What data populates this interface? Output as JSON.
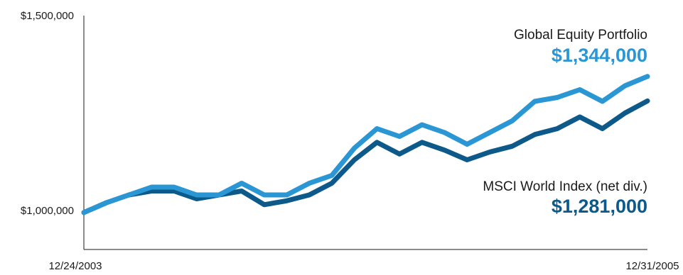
{
  "chart_data": {
    "type": "line",
    "y_tick_labels": [
      "$1,500,000",
      "$1,000,000"
    ],
    "y_ticks": [
      1500000,
      1000000
    ],
    "ylim": [
      900000,
      1500000
    ],
    "x_tick_labels": [
      "12/24/2003",
      "12/31/2005"
    ],
    "grid": false,
    "legend_placement": "right (direct labels)",
    "series": [
      {
        "name": "Global Equity Portfolio",
        "end_label": "$1,344,000",
        "color": "#2a97d4",
        "values": [
          995000,
          1020000,
          1040000,
          1060000,
          1060000,
          1040000,
          1040000,
          1070000,
          1040000,
          1040000,
          1070000,
          1090000,
          1160000,
          1210000,
          1190000,
          1220000,
          1200000,
          1170000,
          1200000,
          1230000,
          1280000,
          1290000,
          1310000,
          1280000,
          1320000,
          1344000
        ]
      },
      {
        "name": "MSCI World Index (net div.)",
        "end_label": "$1,281,000",
        "color": "#0d5a8a",
        "values": [
          995000,
          1020000,
          1040000,
          1050000,
          1050000,
          1030000,
          1040000,
          1050000,
          1015000,
          1025000,
          1040000,
          1070000,
          1130000,
          1175000,
          1145000,
          1175000,
          1155000,
          1130000,
          1150000,
          1165000,
          1195000,
          1210000,
          1240000,
          1210000,
          1250000,
          1281000
        ]
      }
    ]
  }
}
